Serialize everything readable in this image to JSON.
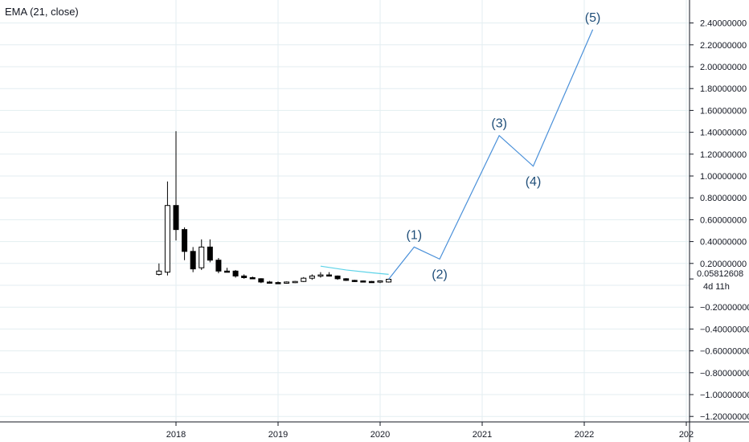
{
  "study_label": "EMA (21, close)",
  "price_tag": "0.05812608",
  "countdown": "4d 11h",
  "chart_data": {
    "type": "candlestick",
    "title": "",
    "xlabel": "",
    "ylabel": "",
    "y_range": [
      -1.25,
      2.55
    ],
    "grid": true,
    "x_ticks": [
      {
        "label": "2018",
        "t": 2018.0
      },
      {
        "label": "2019",
        "t": 2019.0
      },
      {
        "label": "2020",
        "t": 2020.0
      },
      {
        "label": "2021",
        "t": 2021.0
      },
      {
        "label": "2022",
        "t": 2022.0
      },
      {
        "label": "202",
        "t": 2023.0
      }
    ],
    "y_ticks": [
      {
        "label": "2.40000000",
        "v": 2.4
      },
      {
        "label": "2.20000000",
        "v": 2.2
      },
      {
        "label": "2.00000000",
        "v": 2.0
      },
      {
        "label": "1.80000000",
        "v": 1.8
      },
      {
        "label": "1.60000000",
        "v": 1.6
      },
      {
        "label": "1.40000000",
        "v": 1.4
      },
      {
        "label": "1.20000000",
        "v": 1.2
      },
      {
        "label": "1.00000000",
        "v": 1.0
      },
      {
        "label": "0.80000000",
        "v": 0.8
      },
      {
        "label": "0.60000000",
        "v": 0.6
      },
      {
        "label": "0.40000000",
        "v": 0.4
      },
      {
        "label": "0.20000000",
        "v": 0.2
      },
      {
        "label": "0.00000000",
        "v": 0.0
      },
      {
        "label": "−0.20000000",
        "v": -0.2
      },
      {
        "label": "−0.40000000",
        "v": -0.4
      },
      {
        "label": "−0.60000000",
        "v": -0.6
      },
      {
        "label": "−0.80000000",
        "v": -0.8
      },
      {
        "label": "−1.00000000",
        "v": -1.0
      },
      {
        "label": "−1.20000000",
        "v": -1.2
      }
    ],
    "candles": [
      {
        "date": "2017-11",
        "open": 0.1,
        "high": 0.2,
        "low": 0.09,
        "close": 0.13
      },
      {
        "date": "2017-12",
        "open": 0.12,
        "high": 0.95,
        "low": 0.09,
        "close": 0.73
      },
      {
        "date": "2018-01",
        "open": 0.73,
        "high": 1.41,
        "low": 0.41,
        "close": 0.51
      },
      {
        "date": "2018-02",
        "open": 0.51,
        "high": 0.53,
        "low": 0.23,
        "close": 0.31
      },
      {
        "date": "2018-03",
        "open": 0.31,
        "high": 0.35,
        "low": 0.12,
        "close": 0.15
      },
      {
        "date": "2018-04",
        "open": 0.16,
        "high": 0.42,
        "low": 0.14,
        "close": 0.35
      },
      {
        "date": "2018-05",
        "open": 0.35,
        "high": 0.42,
        "low": 0.21,
        "close": 0.23
      },
      {
        "date": "2018-06",
        "open": 0.23,
        "high": 0.25,
        "low": 0.11,
        "close": 0.13
      },
      {
        "date": "2018-07",
        "open": 0.13,
        "high": 0.16,
        "low": 0.12,
        "close": 0.125
      },
      {
        "date": "2018-08",
        "open": 0.13,
        "high": 0.14,
        "low": 0.07,
        "close": 0.085
      },
      {
        "date": "2018-09",
        "open": 0.085,
        "high": 0.1,
        "low": 0.06,
        "close": 0.07
      },
      {
        "date": "2018-10",
        "open": 0.07,
        "high": 0.08,
        "low": 0.055,
        "close": 0.06
      },
      {
        "date": "2018-11",
        "open": 0.06,
        "high": 0.065,
        "low": 0.02,
        "close": 0.03
      },
      {
        "date": "2018-12",
        "open": 0.03,
        "high": 0.04,
        "low": 0.015,
        "close": 0.025
      },
      {
        "date": "2019-01",
        "open": 0.025,
        "high": 0.035,
        "low": 0.015,
        "close": 0.02
      },
      {
        "date": "2019-02",
        "open": 0.02,
        "high": 0.035,
        "low": 0.015,
        "close": 0.03
      },
      {
        "date": "2019-03",
        "open": 0.03,
        "high": 0.04,
        "low": 0.02,
        "close": 0.035
      },
      {
        "date": "2019-04",
        "open": 0.035,
        "high": 0.075,
        "low": 0.03,
        "close": 0.065
      },
      {
        "date": "2019-05",
        "open": 0.065,
        "high": 0.1,
        "low": 0.05,
        "close": 0.085
      },
      {
        "date": "2019-06",
        "open": 0.085,
        "high": 0.12,
        "low": 0.07,
        "close": 0.095
      },
      {
        "date": "2019-07",
        "open": 0.095,
        "high": 0.12,
        "low": 0.08,
        "close": 0.085
      },
      {
        "date": "2019-08",
        "open": 0.085,
        "high": 0.09,
        "low": 0.05,
        "close": 0.06
      },
      {
        "date": "2019-09",
        "open": 0.06,
        "high": 0.065,
        "low": 0.04,
        "close": 0.045
      },
      {
        "date": "2019-10",
        "open": 0.045,
        "high": 0.05,
        "low": 0.03,
        "close": 0.04
      },
      {
        "date": "2019-11",
        "open": 0.04,
        "high": 0.045,
        "low": 0.03,
        "close": 0.035
      },
      {
        "date": "2019-12",
        "open": 0.035,
        "high": 0.04,
        "low": 0.025,
        "close": 0.03
      },
      {
        "date": "2020-01",
        "open": 0.03,
        "high": 0.045,
        "low": 0.02,
        "close": 0.04
      },
      {
        "date": "2020-02",
        "open": 0.03,
        "high": 0.06,
        "low": 0.025,
        "close": 0.055
      }
    ],
    "ema_series": {
      "label": "EMA (21, close)",
      "color": "#5dd3e8",
      "points": [
        {
          "date": "2019-06",
          "value": 0.175
        },
        {
          "date": "2019-09",
          "value": 0.14
        },
        {
          "date": "2019-12",
          "value": 0.115
        },
        {
          "date": "2020-02",
          "value": 0.1
        }
      ]
    },
    "wave_path": {
      "color": "#4a90d9",
      "points": [
        {
          "date": "2020-02",
          "value": 0.055
        },
        {
          "date": "2020-05",
          "value": 0.35,
          "label": "(1)",
          "label_pos": "above"
        },
        {
          "date": "2020-08",
          "value": 0.24,
          "label": "(2)",
          "label_pos": "below"
        },
        {
          "date": "2021-03",
          "value": 1.37,
          "label": "(3)",
          "label_pos": "above"
        },
        {
          "date": "2021-07",
          "value": 1.09,
          "label": "(4)",
          "label_pos": "below"
        },
        {
          "date": "2022-02",
          "value": 2.34,
          "label": "(5)",
          "label_pos": "above"
        }
      ]
    },
    "colors": {
      "grid": "#e3eef1",
      "axis": "#131722",
      "candle_body": "#000000",
      "label_text": "#1f4e79"
    }
  }
}
